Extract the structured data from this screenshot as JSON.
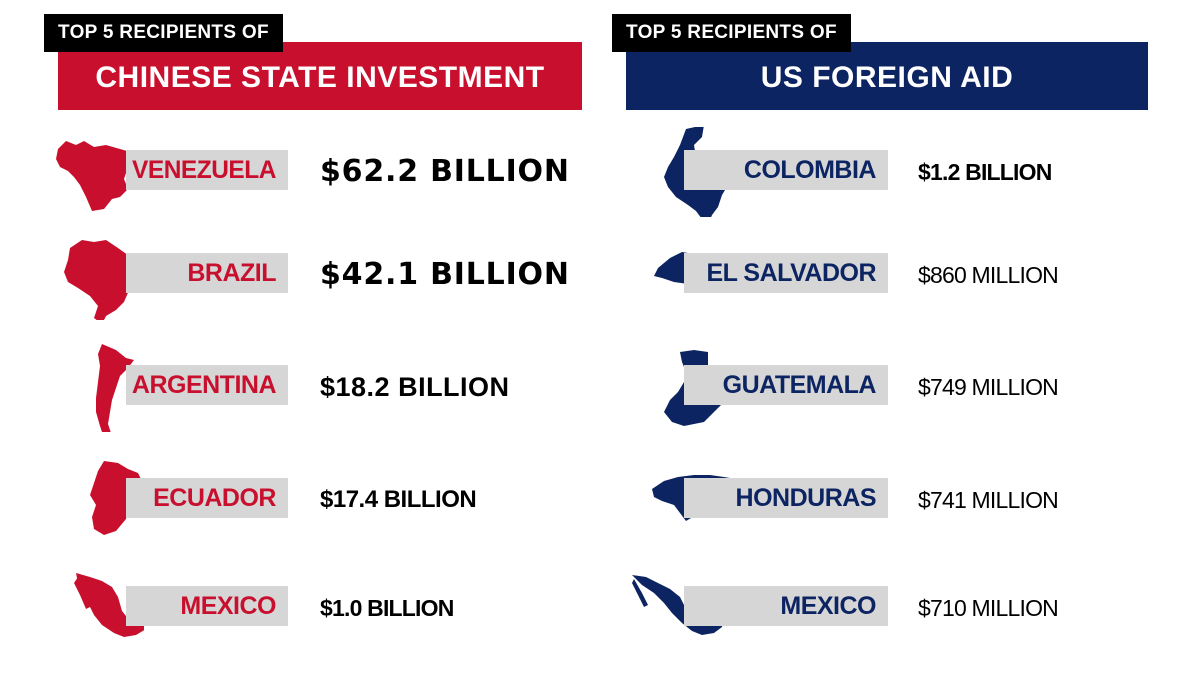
{
  "colors": {
    "china": "#c8102e",
    "us": "#0c2461",
    "tag_bg": "#d6d6d6",
    "kicker_bg": "#000000"
  },
  "left": {
    "kicker": "TOP 5 RECIPIENTS OF",
    "banner": "CHINESE STATE INVESTMENT",
    "rows": [
      {
        "country": "VENEZUELA",
        "amount": "$62.2 BILLION",
        "icon": "venezuela-map-icon"
      },
      {
        "country": "BRAZIL",
        "amount": "$42.1 BILLION",
        "icon": "brazil-map-icon"
      },
      {
        "country": "ARGENTINA",
        "amount": "$18.2 BILLION",
        "icon": "argentina-map-icon"
      },
      {
        "country": "ECUADOR",
        "amount": "$17.4 BILLION",
        "icon": "ecuador-map-icon"
      },
      {
        "country": "MEXICO",
        "amount": "$1.0 BILLION",
        "icon": "mexico-map-icon"
      }
    ]
  },
  "right": {
    "kicker": "TOP 5 RECIPIENTS OF",
    "banner": "US FOREIGN AID",
    "rows": [
      {
        "country": "COLOMBIA",
        "amount": "$1.2 BILLION",
        "icon": "colombia-map-icon"
      },
      {
        "country": "EL SALVADOR",
        "amount": "$860 MILLION",
        "icon": "el-salvador-map-icon"
      },
      {
        "country": "GUATEMALA",
        "amount": "$749 MILLION",
        "icon": "guatemala-map-icon"
      },
      {
        "country": "HONDURAS",
        "amount": "$741 MILLION",
        "icon": "honduras-map-icon"
      },
      {
        "country": "MEXICO",
        "amount": "$710 MILLION",
        "icon": "mexico-map-icon"
      }
    ]
  },
  "chart_data": [
    {
      "type": "table",
      "title": "CHINESE STATE INVESTMENT",
      "subtitle": "TOP 5 RECIPIENTS OF",
      "categories": [
        "VENEZUELA",
        "BRAZIL",
        "ARGENTINA",
        "ECUADOR",
        "MEXICO"
      ],
      "values": [
        62.2,
        42.1,
        18.2,
        17.4,
        1.0
      ],
      "unit": "BILLION"
    },
    {
      "type": "table",
      "title": "US FOREIGN AID",
      "subtitle": "TOP 5 RECIPIENTS OF",
      "categories": [
        "COLOMBIA",
        "EL SALVADOR",
        "GUATEMALA",
        "HONDURAS",
        "MEXICO"
      ],
      "values": [
        1200,
        860,
        749,
        741,
        710
      ],
      "unit": "MILLION"
    }
  ]
}
